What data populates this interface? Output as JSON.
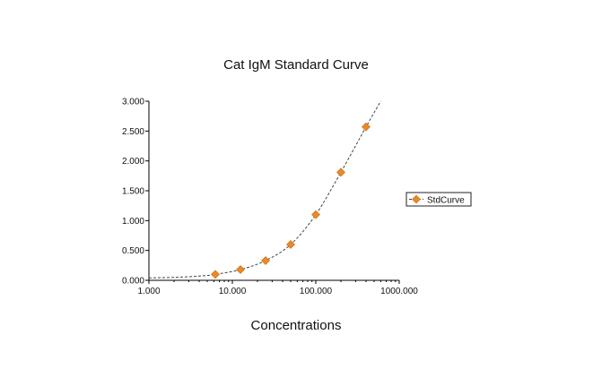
{
  "chart_data": {
    "type": "scatter",
    "title": "Cat IgM Standard Curve",
    "xlabel": "Concentrations",
    "ylabel": "",
    "x_scale": "log",
    "xlim": [
      1,
      1000
    ],
    "ylim": [
      0,
      3
    ],
    "x_ticks": [
      "1.000",
      "10.000",
      "100.000",
      "1000.000"
    ],
    "y_ticks": [
      "0.000",
      "0.500",
      "1.000",
      "1.500",
      "2.000",
      "2.500",
      "3.000"
    ],
    "legend": "right",
    "grid": false,
    "series": [
      {
        "name": "StdCurve",
        "marker": "diamond",
        "color": "#E8892A",
        "x": [
          6.25,
          12.5,
          25,
          50,
          100,
          200,
          400
        ],
        "y": [
          0.1,
          0.18,
          0.33,
          0.6,
          1.1,
          1.81,
          2.57
        ]
      }
    ],
    "fit_curve": {
      "style": "dashed",
      "color": "#444444",
      "x": [
        1,
        2,
        4,
        6.25,
        12.5,
        25,
        50,
        100,
        200,
        400,
        600
      ],
      "y": [
        0.04,
        0.05,
        0.07,
        0.1,
        0.18,
        0.33,
        0.6,
        1.1,
        1.81,
        2.57,
        3.0
      ]
    }
  }
}
